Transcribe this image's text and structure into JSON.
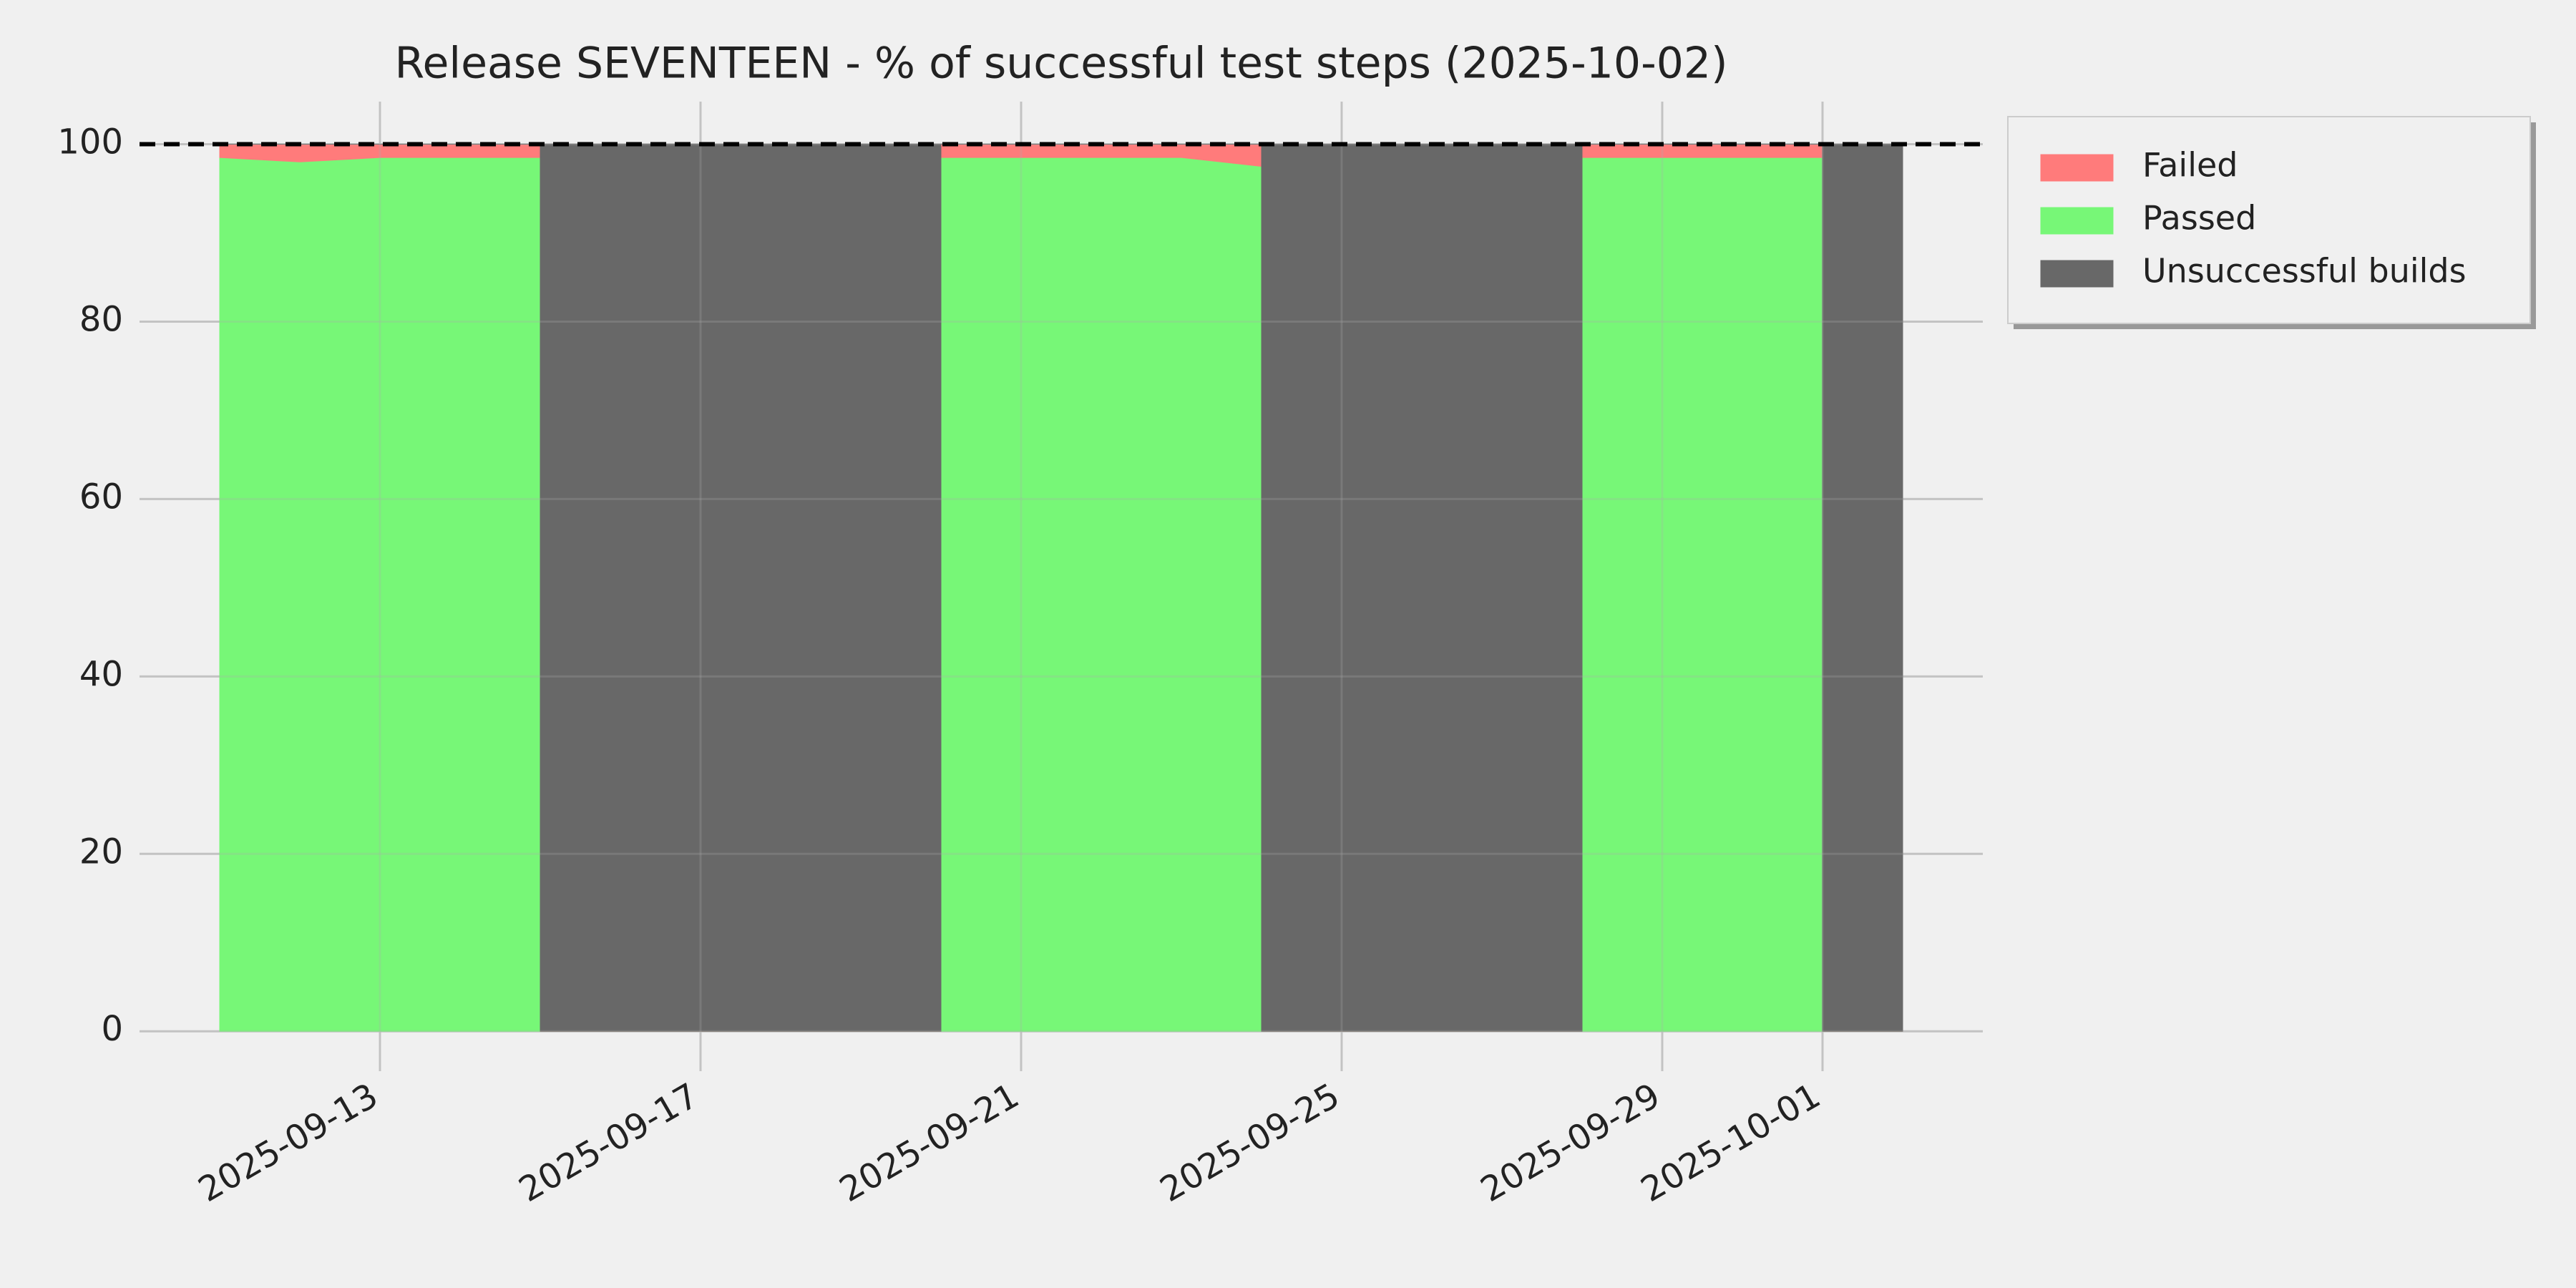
{
  "chart_data": {
    "type": "stacked_area",
    "title": "Release SEVENTEEN - % of successful test steps (2025-10-02)",
    "x": [
      "2025-09-11",
      "2025-09-12",
      "2025-09-13",
      "2025-09-14",
      "2025-09-15",
      "2025-09-15",
      "2025-09-20",
      "2025-09-20",
      "2025-09-21",
      "2025-09-22",
      "2025-09-23",
      "2025-09-24",
      "2025-09-24",
      "2025-09-28",
      "2025-09-28",
      "2025-09-29",
      "2025-09-30",
      "2025-10-01",
      "2025-10-01",
      "2025-10-02"
    ],
    "series": [
      {
        "name": "Failed",
        "color": "#ff7b7b",
        "values": [
          1.5,
          2,
          1.5,
          1.5,
          1.5,
          0,
          0,
          1.5,
          1.5,
          1.5,
          1.5,
          2.5,
          0,
          0,
          1.5,
          1.5,
          1.5,
          1.5,
          0,
          0
        ]
      },
      {
        "name": "Passed",
        "color": "#77f777",
        "values": [
          98.5,
          98,
          98.5,
          98.5,
          98.5,
          0,
          0,
          98.5,
          98.5,
          98.5,
          98.5,
          97.5,
          0,
          0,
          98.5,
          98.5,
          98.5,
          98.5,
          0,
          0
        ]
      },
      {
        "name": "Unsuccessful builds",
        "color": "#686868",
        "values": [
          0,
          0,
          0,
          0,
          0,
          100,
          100,
          0,
          0,
          0,
          0,
          0,
          100,
          100,
          0,
          0,
          0,
          0,
          100,
          100
        ]
      }
    ],
    "xlim": [
      "2025-09-10",
      "2025-10-03"
    ],
    "xticks": [
      "2025-09-13",
      "2025-09-17",
      "2025-09-21",
      "2025-09-25",
      "2025-09-29",
      "2025-10-01"
    ],
    "ylim": [
      -4.5,
      104.8
    ],
    "yticks": [
      0,
      20,
      40,
      60,
      80,
      100
    ],
    "hline": 100,
    "grid": true,
    "legend": "outside-upper-right"
  }
}
